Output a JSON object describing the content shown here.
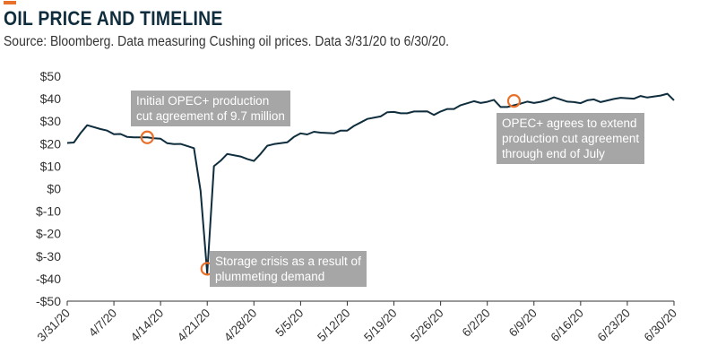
{
  "header": {
    "title": "OIL PRICE AND TIMELINE",
    "subtitle": "Source: Bloomberg. Data measuring Cushing oil prices. Data 3/31/20 to 6/30/20."
  },
  "colors": {
    "accent": "#e8702a",
    "line": "#0f2d3d",
    "marker": "#e8702a",
    "annotation_bg": "#a6a6a6"
  },
  "chart_data": {
    "type": "line",
    "title": "OIL PRICE AND TIMELINE",
    "xlabel": "",
    "ylabel": "",
    "ylim": [
      -50,
      50
    ],
    "y_ticks": [
      50,
      40,
      30,
      20,
      10,
      0,
      -10,
      -20,
      -30,
      -40,
      -50
    ],
    "y_tick_labels": [
      "$50",
      "$40",
      "$30",
      "$20",
      "$10",
      "$0",
      "$-10",
      "$-20",
      "$-30",
      "-$40",
      "-$50"
    ],
    "x_ticks": [
      0,
      7,
      14,
      21,
      28,
      35,
      42,
      49,
      56,
      63,
      70,
      77,
      84,
      91
    ],
    "x_tick_labels": [
      "3/31/20",
      "4/7/20",
      "4/14/20",
      "4/21/20",
      "4/28/20",
      "5/5/20",
      "5/12/20",
      "5/19/20",
      "5/26/20",
      "6/2/20",
      "6/9/20",
      "6/16/20",
      "6/23/20",
      "6/30/20"
    ],
    "grid": false,
    "series": [
      {
        "name": "Cushing oil price",
        "x": [
          0,
          1,
          2,
          3,
          5,
          6,
          7,
          8,
          9,
          10,
          12,
          13,
          14,
          15,
          16,
          17,
          19,
          20,
          21,
          22,
          23,
          24,
          26,
          27,
          28,
          29,
          30,
          31,
          33,
          34,
          35,
          36,
          37,
          38,
          40,
          41,
          42,
          43,
          44,
          45,
          47,
          48,
          49,
          50,
          51,
          52,
          54,
          55,
          56,
          57,
          58,
          59,
          61,
          62,
          63,
          64,
          65,
          66,
          68,
          69,
          70,
          71,
          72,
          73,
          75,
          76,
          77,
          78,
          79,
          80,
          82,
          83,
          84,
          85,
          86,
          87,
          89,
          90,
          91
        ],
        "values": [
          20.3,
          20.5,
          24.7,
          28.2,
          26.5,
          25.8,
          24.2,
          24.3,
          23.0,
          22.8,
          22.8,
          22.4,
          22.2,
          20.2,
          19.8,
          19.9,
          18.0,
          -1.0,
          -37.6,
          10.0,
          12.4,
          15.4,
          14.3,
          13.2,
          12.3,
          15.4,
          19.1,
          19.8,
          20.6,
          23.0,
          24.6,
          24.1,
          25.3,
          24.9,
          24.6,
          25.8,
          25.8,
          27.9,
          29.4,
          31.0,
          32.1,
          34.0,
          34.1,
          33.5,
          33.5,
          34.3,
          34.4,
          32.8,
          34.3,
          35.4,
          35.4,
          37.1,
          38.9,
          38.1,
          38.6,
          39.5,
          36.3,
          36.3,
          37.8,
          38.7,
          38.1,
          38.6,
          39.4,
          40.6,
          38.7,
          38.5,
          38.0,
          39.3,
          39.7,
          38.5,
          39.9,
          40.4,
          40.2,
          40.0,
          41.2,
          40.5,
          41.4,
          42.2,
          39.3
        ]
      }
    ],
    "annotations": [
      {
        "x": 12,
        "y": 22.8,
        "lines": [
          "Initial OPEC+ production",
          "cut agreement of 9.7 million"
        ]
      },
      {
        "x": 21,
        "y": -35.6,
        "lines": [
          "Storage crisis as a result of",
          "plummeting demand"
        ]
      },
      {
        "x": 67,
        "y": 39.0,
        "lines": [
          "OPEC+ agrees to extend",
          "production cut agreement",
          "through end of July"
        ]
      }
    ]
  }
}
